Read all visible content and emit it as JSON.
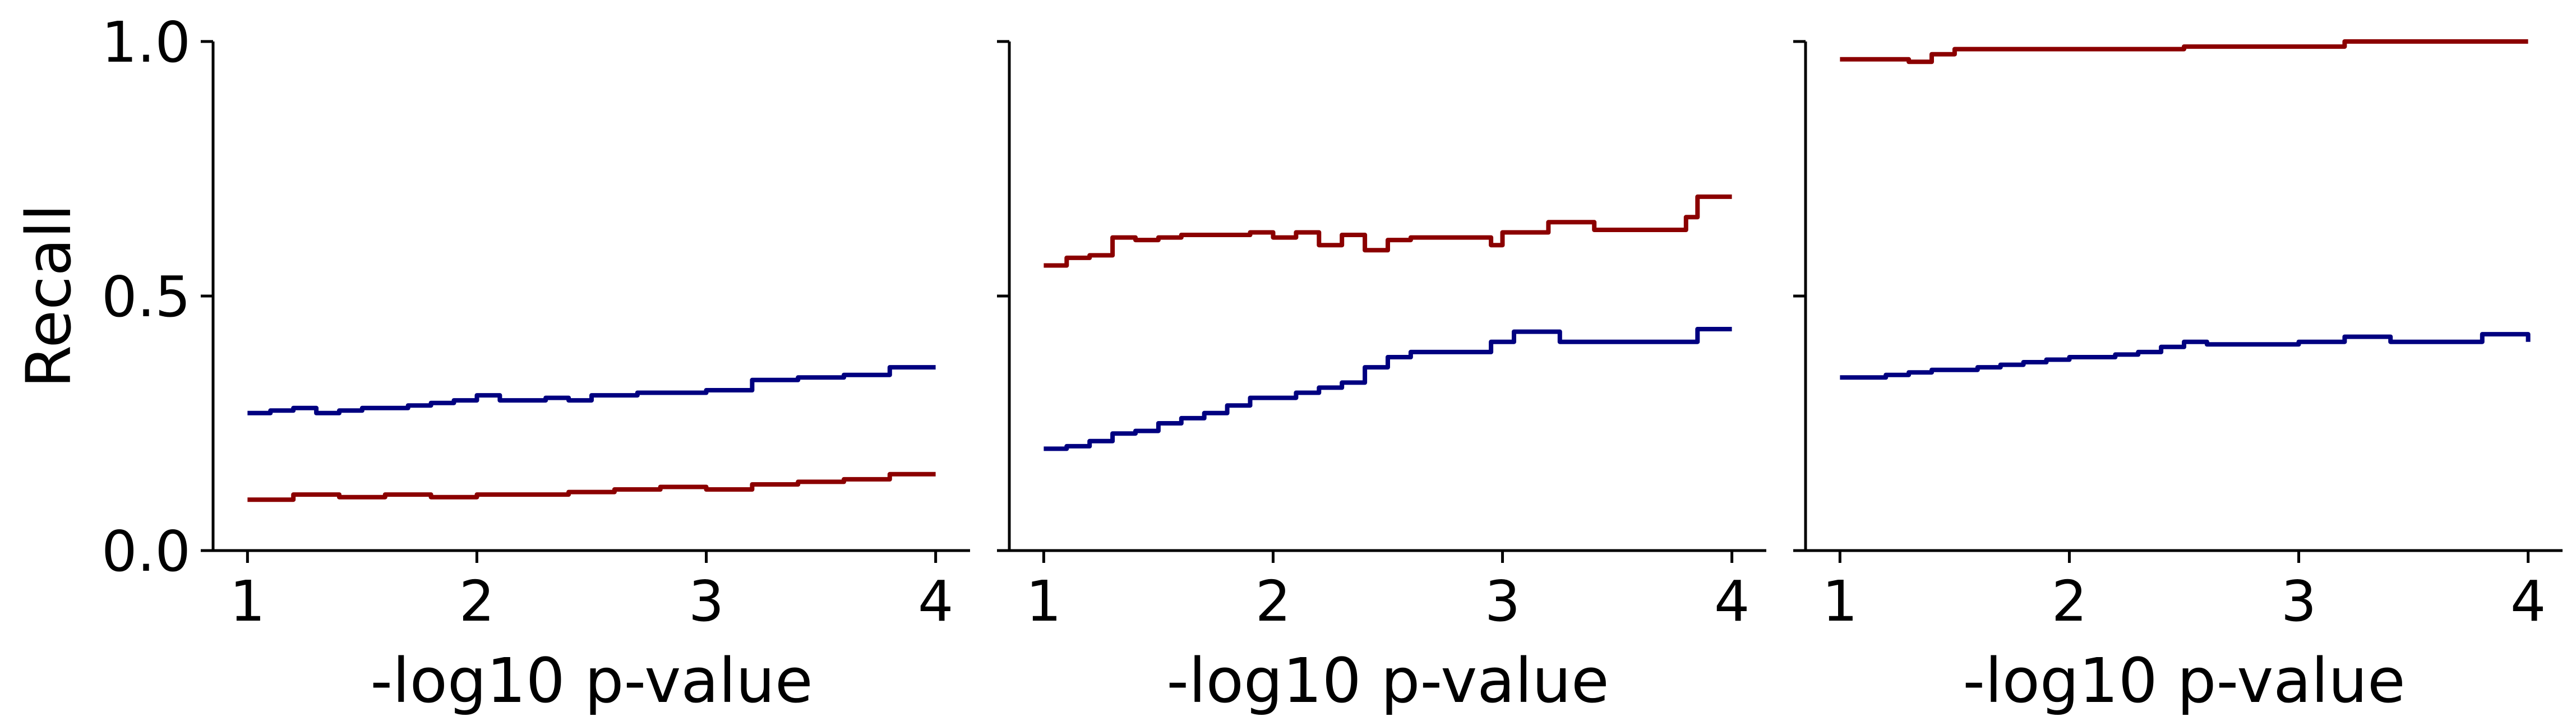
{
  "chart_data": [
    {
      "type": "line",
      "xlabel": "-log10 p-value",
      "ylabel": "Recall",
      "xlim": [
        0.85,
        4.15
      ],
      "ylim": [
        0,
        1
      ],
      "xticks": [
        1,
        2,
        3,
        4
      ],
      "yticks": [
        0.0,
        0.5,
        1.0
      ],
      "ytick_labels": [
        "0.0",
        "0.5",
        "1.0"
      ],
      "xtick_labels": [
        "1",
        "2",
        "3",
        "4"
      ],
      "series": [
        {
          "color": "#000080",
          "x": [
            1.0,
            1.1,
            1.2,
            1.3,
            1.4,
            1.5,
            1.6,
            1.7,
            1.8,
            1.9,
            2.0,
            2.1,
            2.2,
            2.3,
            2.4,
            2.5,
            2.6,
            2.7,
            2.8,
            2.9,
            3.0,
            3.2,
            3.4,
            3.6,
            3.8,
            4.0
          ],
          "y": [
            0.27,
            0.275,
            0.28,
            0.27,
            0.275,
            0.28,
            0.28,
            0.285,
            0.29,
            0.295,
            0.305,
            0.295,
            0.295,
            0.3,
            0.295,
            0.305,
            0.305,
            0.31,
            0.31,
            0.31,
            0.315,
            0.335,
            0.34,
            0.345,
            0.36,
            0.36
          ]
        },
        {
          "color": "#8b0000",
          "x": [
            1.0,
            1.2,
            1.4,
            1.6,
            1.8,
            2.0,
            2.2,
            2.4,
            2.6,
            2.8,
            3.0,
            3.2,
            3.4,
            3.6,
            3.8,
            4.0
          ],
          "y": [
            0.1,
            0.11,
            0.105,
            0.11,
            0.105,
            0.11,
            0.11,
            0.115,
            0.12,
            0.125,
            0.12,
            0.13,
            0.135,
            0.14,
            0.15,
            0.15
          ]
        }
      ]
    },
    {
      "type": "line",
      "xlabel": "-log10 p-value",
      "ylabel": "",
      "xlim": [
        0.85,
        4.15
      ],
      "ylim": [
        0,
        1
      ],
      "xticks": [
        1,
        2,
        3,
        4
      ],
      "xtick_labels": [
        "1",
        "2",
        "3",
        "4"
      ],
      "series": [
        {
          "color": "#000080",
          "x": [
            1.0,
            1.1,
            1.2,
            1.3,
            1.4,
            1.5,
            1.6,
            1.7,
            1.8,
            1.9,
            2.0,
            2.1,
            2.2,
            2.3,
            2.4,
            2.5,
            2.6,
            2.8,
            2.95,
            3.05,
            3.25,
            3.6,
            3.85,
            4.0
          ],
          "y": [
            0.2,
            0.205,
            0.215,
            0.23,
            0.235,
            0.25,
            0.26,
            0.27,
            0.285,
            0.3,
            0.3,
            0.31,
            0.32,
            0.33,
            0.36,
            0.38,
            0.39,
            0.39,
            0.41,
            0.43,
            0.41,
            0.41,
            0.435,
            0.435
          ]
        },
        {
          "color": "#8b0000",
          "x": [
            1.0,
            1.1,
            1.2,
            1.3,
            1.4,
            1.5,
            1.6,
            1.7,
            1.8,
            1.9,
            2.0,
            2.1,
            2.2,
            2.3,
            2.4,
            2.5,
            2.6,
            2.8,
            2.95,
            3.0,
            3.2,
            3.4,
            3.6,
            3.8,
            3.85,
            4.0
          ],
          "y": [
            0.56,
            0.575,
            0.58,
            0.615,
            0.61,
            0.615,
            0.62,
            0.62,
            0.62,
            0.625,
            0.615,
            0.625,
            0.6,
            0.62,
            0.59,
            0.61,
            0.615,
            0.615,
            0.6,
            0.625,
            0.645,
            0.63,
            0.63,
            0.655,
            0.695,
            0.695
          ]
        }
      ]
    },
    {
      "type": "line",
      "xlabel": "-log10 p-value",
      "ylabel": "",
      "xlim": [
        0.85,
        4.15
      ],
      "ylim": [
        0,
        1
      ],
      "xticks": [
        1,
        2,
        3,
        4
      ],
      "xtick_labels": [
        "1",
        "2",
        "3",
        "4"
      ],
      "series": [
        {
          "color": "#000080",
          "x": [
            1.0,
            1.1,
            1.2,
            1.3,
            1.4,
            1.5,
            1.6,
            1.7,
            1.8,
            1.9,
            2.0,
            2.1,
            2.2,
            2.3,
            2.4,
            2.5,
            2.6,
            2.8,
            3.0,
            3.2,
            3.4,
            3.6,
            3.8,
            4.0
          ],
          "y": [
            0.34,
            0.34,
            0.345,
            0.35,
            0.355,
            0.355,
            0.36,
            0.365,
            0.37,
            0.375,
            0.38,
            0.38,
            0.385,
            0.39,
            0.4,
            0.41,
            0.405,
            0.405,
            0.41,
            0.42,
            0.41,
            0.41,
            0.425,
            0.41
          ]
        },
        {
          "color": "#8b0000",
          "x": [
            1.0,
            1.2,
            1.3,
            1.4,
            1.5,
            1.6,
            2.0,
            2.4,
            2.5,
            3.0,
            3.2,
            4.0
          ],
          "y": [
            0.965,
            0.965,
            0.96,
            0.975,
            0.985,
            0.985,
            0.985,
            0.985,
            0.99,
            0.99,
            1.0,
            1.0
          ]
        }
      ]
    }
  ]
}
